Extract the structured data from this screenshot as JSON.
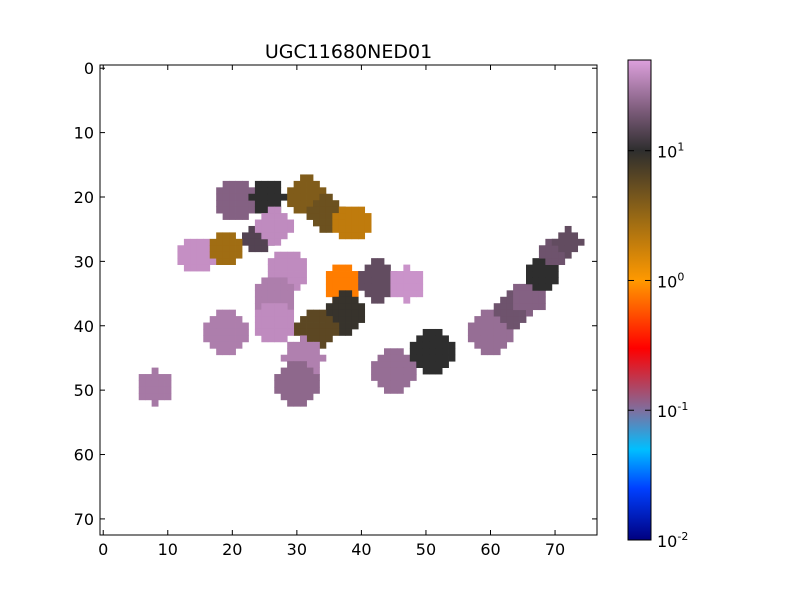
{
  "chart_data": {
    "type": "heatmap",
    "title": "UGC11680NED01",
    "xlabel": "",
    "ylabel": "",
    "xlim": [
      -0.5,
      76.5
    ],
    "ylim": [
      72.5,
      -0.5
    ],
    "x_ticks": [
      0,
      10,
      20,
      30,
      40,
      50,
      60,
      70
    ],
    "y_ticks": [
      0,
      10,
      20,
      30,
      40,
      50,
      60,
      70
    ],
    "grid": false,
    "colorbar": {
      "scale": "log",
      "range": [
        0.01,
        50
      ],
      "ticks": [
        {
          "base": "10",
          "exp": "-2",
          "value": 0.01
        },
        {
          "base": "10",
          "exp": "-1",
          "value": 0.1
        },
        {
          "base": "10",
          "exp": "0",
          "value": 1
        },
        {
          "base": "10",
          "exp": "1",
          "value": 10
        }
      ],
      "color_stops": [
        {
          "value": 0.01,
          "color": "#000080"
        },
        {
          "value": 0.025,
          "color": "#0040ff"
        },
        {
          "value": 0.05,
          "color": "#00bfff"
        },
        {
          "value": 0.1,
          "color": "#7f6f9f"
        },
        {
          "value": 0.3,
          "color": "#ff0000"
        },
        {
          "value": 0.6,
          "color": "#ff5a00"
        },
        {
          "value": 1.0,
          "color": "#ff9900"
        },
        {
          "value": 3.0,
          "color": "#9a6a14"
        },
        {
          "value": 10.0,
          "color": "#2e2e2e"
        },
        {
          "value": 20.0,
          "color": "#7a5a78"
        },
        {
          "value": 50.0,
          "color": "#dda0dd"
        }
      ]
    },
    "blobs": [
      {
        "cx": 20.5,
        "cy": 20.5,
        "r": 3.3,
        "value": 22
      },
      {
        "cx": 25.5,
        "cy": 20.0,
        "r": 2.6,
        "value": 10
      },
      {
        "cx": 31.5,
        "cy": 19.8,
        "r": 3.0,
        "value": 4
      },
      {
        "cx": 34.5,
        "cy": 22.5,
        "r": 2.6,
        "value": 5
      },
      {
        "cx": 38.5,
        "cy": 24.0,
        "r": 2.9,
        "value": 2
      },
      {
        "cx": 24.0,
        "cy": 26.5,
        "r": 2.3,
        "value": 14
      },
      {
        "cx": 26.5,
        "cy": 24.5,
        "r": 2.8,
        "value": 38
      },
      {
        "cx": 14.5,
        "cy": 29.0,
        "r": 2.9,
        "value": 40
      },
      {
        "cx": 19.0,
        "cy": 28.0,
        "r": 2.6,
        "value": 2.8
      },
      {
        "cx": 28.5,
        "cy": 31.5,
        "r": 3.0,
        "value": 38
      },
      {
        "cx": 26.5,
        "cy": 35.5,
        "r": 3.0,
        "value": 32
      },
      {
        "cx": 37.0,
        "cy": 33.5,
        "r": 2.9,
        "value": 0.8
      },
      {
        "cx": 42.5,
        "cy": 33.0,
        "r": 3.1,
        "value": 16
      },
      {
        "cx": 47.0,
        "cy": 33.5,
        "r": 2.6,
        "value": 42
      },
      {
        "cx": 37.5,
        "cy": 38.0,
        "r": 3.2,
        "value": 9
      },
      {
        "cx": 33.0,
        "cy": 40.5,
        "r": 3.2,
        "value": 6
      },
      {
        "cx": 26.5,
        "cy": 39.5,
        "r": 3.3,
        "value": 38
      },
      {
        "cx": 19.0,
        "cy": 41.0,
        "r": 3.3,
        "value": 32
      },
      {
        "cx": 31.0,
        "cy": 45.0,
        "r": 3.1,
        "value": 33
      },
      {
        "cx": 30.0,
        "cy": 49.0,
        "r": 3.2,
        "value": 24
      },
      {
        "cx": 45.0,
        "cy": 47.0,
        "r": 3.3,
        "value": 26
      },
      {
        "cx": 51.0,
        "cy": 44.0,
        "r": 3.2,
        "value": 10
      },
      {
        "cx": 8.0,
        "cy": 49.5,
        "r": 2.6,
        "value": 30
      },
      {
        "cx": 60.0,
        "cy": 41.0,
        "r": 3.2,
        "value": 26
      },
      {
        "cx": 63.5,
        "cy": 37.5,
        "r": 2.8,
        "value": 18
      },
      {
        "cx": 66.0,
        "cy": 35.5,
        "r": 2.6,
        "value": 22
      },
      {
        "cx": 68.0,
        "cy": 32.0,
        "r": 2.5,
        "value": 10
      },
      {
        "cx": 70.0,
        "cy": 28.5,
        "r": 2.4,
        "value": 18
      },
      {
        "cx": 72.0,
        "cy": 27.0,
        "r": 2.2,
        "value": 16
      }
    ]
  }
}
